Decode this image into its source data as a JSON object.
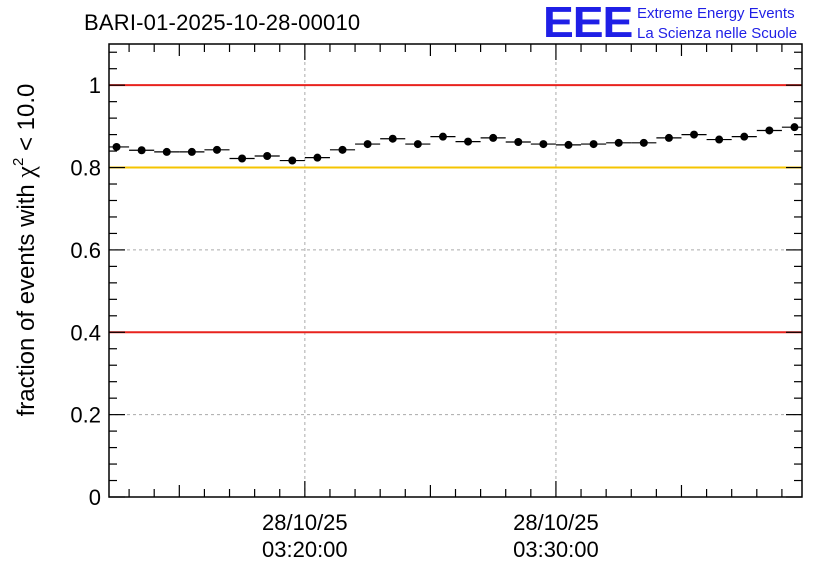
{
  "chart_data": {
    "type": "scatter",
    "title": "BARI-01-2025-10-28-00010",
    "ylabel": {
      "main": "fraction of events with ",
      "chi": "χ",
      "sup": "2",
      "tail": " < 10.0"
    },
    "ylim": [
      0,
      1.1
    ],
    "xlim_minutes": [
      12.2,
      39.8
    ],
    "y_ticks": [
      {
        "value": 0,
        "label": "0"
      },
      {
        "value": 0.2,
        "label": "0.2"
      },
      {
        "value": 0.4,
        "label": "0.4"
      },
      {
        "value": 0.6,
        "label": "0.6"
      },
      {
        "value": 0.8,
        "label": "0.8"
      },
      {
        "value": 1.0,
        "label": "1"
      }
    ],
    "x_ticks": [
      {
        "minute": 20,
        "date": "28/10/25",
        "time": "03:20:00"
      },
      {
        "minute": 30,
        "date": "28/10/25",
        "time": "03:30:00"
      }
    ],
    "x_bin_width_minutes": 1,
    "reference_lines": [
      {
        "value": 1.0,
        "color": "#e8231e"
      },
      {
        "value": 0.8,
        "color": "#f5c400"
      },
      {
        "value": 0.4,
        "color": "#e8231e"
      }
    ],
    "points": [
      {
        "x": 12.5,
        "y": 0.85
      },
      {
        "x": 13.5,
        "y": 0.842
      },
      {
        "x": 14.5,
        "y": 0.838
      },
      {
        "x": 15.5,
        "y": 0.838
      },
      {
        "x": 16.5,
        "y": 0.843
      },
      {
        "x": 17.5,
        "y": 0.822
      },
      {
        "x": 18.5,
        "y": 0.828
      },
      {
        "x": 19.5,
        "y": 0.817
      },
      {
        "x": 20.5,
        "y": 0.824
      },
      {
        "x": 21.5,
        "y": 0.843
      },
      {
        "x": 22.5,
        "y": 0.857
      },
      {
        "x": 23.5,
        "y": 0.87
      },
      {
        "x": 24.5,
        "y": 0.857
      },
      {
        "x": 25.5,
        "y": 0.875
      },
      {
        "x": 26.5,
        "y": 0.863
      },
      {
        "x": 27.5,
        "y": 0.872
      },
      {
        "x": 28.5,
        "y": 0.862
      },
      {
        "x": 29.5,
        "y": 0.857
      },
      {
        "x": 30.5,
        "y": 0.855
      },
      {
        "x": 31.5,
        "y": 0.857
      },
      {
        "x": 32.5,
        "y": 0.86
      },
      {
        "x": 33.5,
        "y": 0.86
      },
      {
        "x": 34.5,
        "y": 0.872
      },
      {
        "x": 35.5,
        "y": 0.88
      },
      {
        "x": 36.5,
        "y": 0.868
      },
      {
        "x": 37.5,
        "y": 0.875
      },
      {
        "x": 38.5,
        "y": 0.89
      },
      {
        "x": 39.5,
        "y": 0.898
      }
    ]
  },
  "logo": {
    "mark": "EEE",
    "line1": "Extreme Energy Events",
    "line2": "La Scienza nelle Scuole"
  },
  "colors": {
    "logo": "#1f1fe6",
    "grid": "#aaaaaa",
    "marker": "#000000"
  }
}
